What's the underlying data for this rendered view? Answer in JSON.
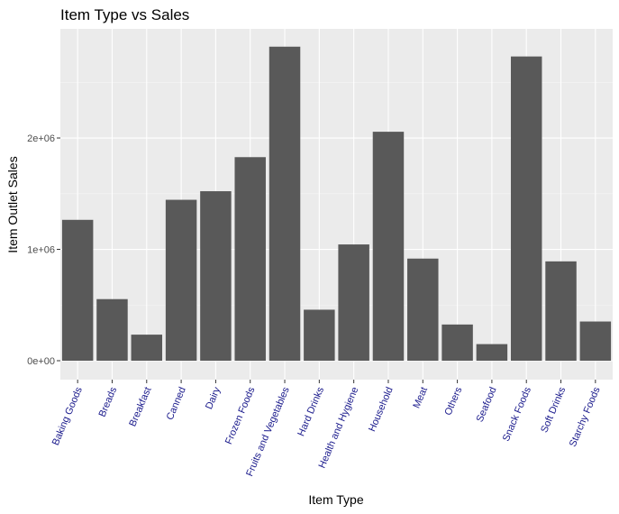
{
  "chart_data": {
    "type": "bar",
    "title": "Item Type vs Sales",
    "xlabel": "Item Type",
    "ylabel": "Item Outlet Sales",
    "categories": [
      "Baking Goods",
      "Breads",
      "Breakfast",
      "Canned",
      "Dairy",
      "Frozen Foods",
      "Fruits and Vegetables",
      "Hard Drinks",
      "Health and Hygiene",
      "Household",
      "Meat",
      "Others",
      "Seafood",
      "Snack Foods",
      "Soft Drinks",
      "Starchy Foods"
    ],
    "values": [
      1265000,
      553000,
      234000,
      1445000,
      1522000,
      1828000,
      2820000,
      458000,
      1044000,
      2056000,
      917000,
      325000,
      149000,
      2732000,
      892000,
      352000
    ],
    "yticks": [
      0,
      1000000,
      2000000
    ],
    "yticklabels": [
      "0e+00",
      "1e+06",
      "2e+06"
    ],
    "ylim": [
      -170000,
      2980000
    ],
    "grid": true,
    "colors": {
      "bar": "#595959",
      "panel": "#ebebeb",
      "grid_major": "#ffffff",
      "grid_minor": "#f5f5f5",
      "x_tick_label": "#1a1a8c",
      "tick_mark": "#333333"
    }
  }
}
